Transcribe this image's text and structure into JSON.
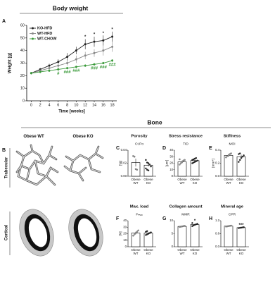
{
  "figure": {
    "section_title": "Bone",
    "panel_b": "B",
    "columns": [
      "Obese WT",
      "Obese KO"
    ],
    "rows": [
      "Trabecular",
      "Cortical"
    ]
  },
  "chart_data": [
    {
      "type": "line",
      "panel": "A",
      "title": "Body weight",
      "xlabel": "Time [weeks]",
      "ylabel": "Weight [g]",
      "x": [
        0,
        2,
        4,
        6,
        8,
        10,
        12,
        14,
        16,
        18
      ],
      "xlim": [
        -1,
        19
      ],
      "xticks": [
        0,
        2,
        4,
        6,
        8,
        10,
        12,
        14,
        16,
        18
      ],
      "ylim": [
        0,
        60
      ],
      "yticks": [
        0,
        10,
        20,
        30,
        40,
        50,
        60
      ],
      "legend": "upper left",
      "series": [
        {
          "name": "KO-HFD",
          "color": "#222222",
          "values": [
            22,
            25,
            28,
            31,
            35,
            40,
            45,
            47,
            48,
            51
          ],
          "errors": [
            1,
            1,
            1.5,
            2,
            3,
            3,
            4,
            4,
            4,
            4
          ]
        },
        {
          "name": "WT-HFD",
          "color": "#888888",
          "values": [
            22,
            24,
            26,
            28,
            30,
            33,
            36,
            38,
            40,
            43
          ],
          "errors": [
            1,
            1,
            1.5,
            2,
            2,
            3,
            3,
            3,
            4,
            4
          ]
        },
        {
          "name": "WT-CHOW",
          "color": "#3a9a3a",
          "values": [
            22,
            23,
            24,
            25,
            26,
            27,
            28,
            29,
            30,
            32
          ],
          "errors": [
            1,
            1,
            1,
            1,
            1,
            1,
            1,
            1,
            1,
            1
          ]
        }
      ],
      "annotations": [
        {
          "text": "*",
          "x": 12,
          "series": 0
        },
        {
          "text": "*",
          "x": 14,
          "series": 0
        },
        {
          "text": "*",
          "x": 16,
          "series": 0
        },
        {
          "text": "*",
          "x": 18,
          "series": 0
        },
        {
          "text": "#",
          "x": 6,
          "series": 2
        },
        {
          "text": "###",
          "x": 8,
          "series": 2
        },
        {
          "text": "###",
          "x": 10,
          "series": 2
        },
        {
          "text": "###",
          "x": 14,
          "series": 2
        },
        {
          "text": "###",
          "x": 16,
          "series": 2
        },
        {
          "text": "###",
          "x": 18,
          "series": 2
        }
      ]
    },
    {
      "type": "bar",
      "panel": "C",
      "title": "Porosity",
      "subtitle": "Ct.Po",
      "ylabel": "[%]",
      "categories": [
        "Obese WT",
        "Obese KO"
      ],
      "values": [
        0.021,
        0.017
      ],
      "errors": [
        0.006,
        0.002
      ],
      "points": [
        [
          0.031,
          0.03,
          0.011,
          0.01
        ],
        [
          0.025,
          0.021,
          0.02,
          0.018,
          0.015,
          0.012,
          0.01,
          0.009
        ]
      ],
      "point_colors": [
        "#999999",
        "#222222"
      ],
      "ylim": [
        0,
        0.04
      ],
      "yticks": [
        {
          "value": 0,
          "label": "0.00"
        },
        {
          "value": 0.02,
          "label": "0.02"
        },
        {
          "value": 0.04,
          "label": "0.04"
        }
      ]
    },
    {
      "type": "bar",
      "panel": "D",
      "title": "Stress resistance",
      "subtitle": "TID",
      "ylabel": "[µm]",
      "categories": [
        "Obese WT",
        "Obese KO"
      ],
      "values": [
        22,
        24
      ],
      "errors": [
        2,
        1.5
      ],
      "points": [
        [
          18,
          20,
          22,
          24,
          25,
          26
        ],
        [
          20,
          21,
          22,
          23,
          24,
          25,
          26,
          27,
          28
        ]
      ],
      "point_colors": [
        "#999999",
        "#222222"
      ],
      "ylim": [
        0,
        40
      ],
      "yticks": [
        0,
        10,
        20,
        30,
        40
      ]
    },
    {
      "type": "bar",
      "panel": "E",
      "title": "Stiffness",
      "subtitle": "MOI",
      "ylabel": "[mm⁴]",
      "categories": [
        "Obese WT",
        "Obese KO"
      ],
      "values": [
        0.32,
        0.3
      ],
      "errors": [
        0.02,
        0.03
      ],
      "points": [
        [
          0.29,
          0.31,
          0.32,
          0.34,
          0.35
        ],
        [
          0.22,
          0.25,
          0.28,
          0.3,
          0.32,
          0.34,
          0.35
        ]
      ],
      "point_colors": [
        "#999999",
        "#222222"
      ],
      "ylim": [
        0,
        0.4
      ],
      "yticks": [
        {
          "value": 0,
          "label": "0.0"
        },
        {
          "value": 0.2,
          "label": "0.2"
        },
        {
          "value": 0.4,
          "label": "0.4"
        }
      ]
    },
    {
      "type": "bar",
      "panel": "F",
      "title": "Max. load",
      "subtitle": "Fₘₐₓ",
      "ylabel": "[N]",
      "categories": [
        "Obese WT",
        "Obese KO"
      ],
      "values": [
        21,
        21
      ],
      "errors": [
        2,
        1
      ],
      "points": [
        [
          17,
          19,
          21,
          23,
          25
        ],
        [
          18,
          19,
          20,
          21,
          22,
          23,
          24
        ]
      ],
      "point_colors": [
        "#999999",
        "#222222"
      ],
      "ylim": [
        0,
        40
      ],
      "yticks": [
        0,
        10,
        20,
        30,
        40
      ]
    },
    {
      "type": "bar",
      "panel": "G",
      "title": "Collagen amount",
      "subtitle": "MMR",
      "categories": [
        "Obese WT",
        "Obese KO"
      ],
      "values": [
        7.8,
        8.5
      ],
      "errors": [
        0.1,
        0.3
      ],
      "points": [
        [
          7.6,
          7.7,
          7.8,
          7.9,
          8.0
        ],
        [
          7.9,
          8.2,
          8.4,
          8.6,
          8.8,
          9.1
        ]
      ],
      "point_colors": [
        "#999999",
        "#222222"
      ],
      "ylim": [
        0,
        10
      ],
      "yticks": [
        0,
        5,
        10
      ],
      "significance": {
        "index": 1,
        "text": "*"
      }
    },
    {
      "type": "bar",
      "panel": "H",
      "title": "Mineral age",
      "subtitle": "CPR",
      "categories": [
        "Obese WT",
        "Obese KO"
      ],
      "values": [
        0.95,
        0.88
      ],
      "errors": [
        0.01,
        0.01
      ],
      "points": [
        [
          0.93,
          0.94,
          0.95,
          0.96,
          0.97
        ],
        [
          0.86,
          0.87,
          0.88,
          0.89,
          0.9
        ]
      ],
      "point_colors": [
        "#999999",
        "#222222"
      ],
      "ylim": [
        0,
        1.2
      ],
      "yticks": [
        {
          "value": 0,
          "label": "0.0"
        },
        {
          "value": 0.6,
          "label": "0.6"
        },
        {
          "value": 1.2,
          "label": "1.2"
        }
      ],
      "significance": {
        "index": 1,
        "text": "***"
      }
    }
  ]
}
